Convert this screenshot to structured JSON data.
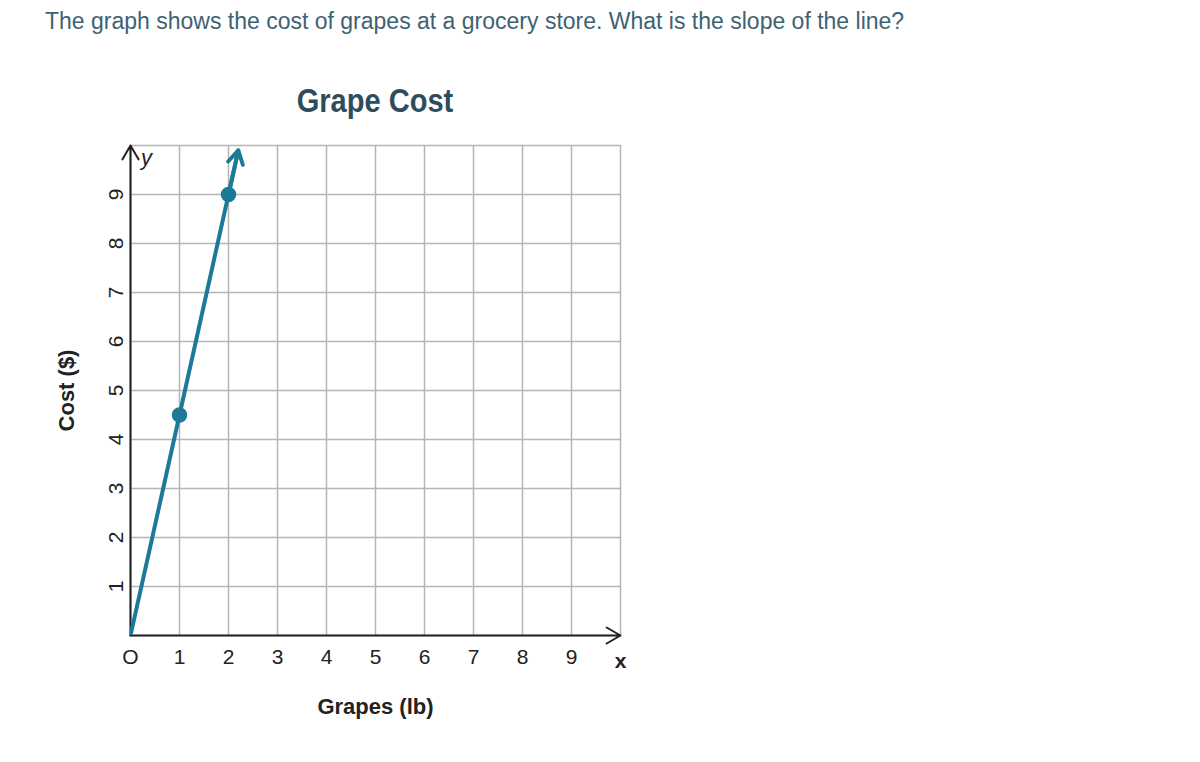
{
  "question": "The graph shows the cost of grapes at a grocery store. What is the slope of the line?",
  "chart_data": {
    "type": "line",
    "title": "Grape Cost",
    "x_label": "Grapes (lb)",
    "y_label": "Cost ($)",
    "axis_symbols": {
      "x": "x",
      "y": "y"
    },
    "x": [
      0,
      1,
      2,
      2.2
    ],
    "values": [
      0,
      4.5,
      9,
      9.9
    ],
    "points": {
      "x": [
        1,
        2
      ],
      "values": [
        4.5,
        9
      ]
    },
    "color": "#1d7a97",
    "xlim": [
      0,
      10
    ],
    "ylim": [
      0,
      10
    ],
    "xticks": [
      {
        "value": 0,
        "label": "O"
      },
      1,
      2,
      3,
      4,
      5,
      6,
      7,
      8,
      9
    ],
    "yticks": [
      1,
      2,
      3,
      4,
      5,
      6,
      7,
      8,
      9
    ],
    "grid": true
  }
}
